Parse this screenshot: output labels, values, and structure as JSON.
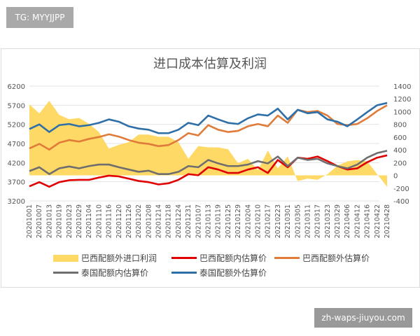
{
  "watermark_top": "TG: MYYJJPP",
  "watermark_bottom": "zh-waps-jiuyou.com",
  "chart_data": {
    "type": "line",
    "title": "进口成本估算及利润",
    "categories": [
      "20201001",
      "20201007",
      "20201013",
      "20201019",
      "20201023",
      "20201029",
      "20201104",
      "20201110",
      "20201116",
      "20201120",
      "20201126",
      "20201202",
      "20201208",
      "20201214",
      "20201218",
      "20201224",
      "20201231",
      "20210107",
      "20210113",
      "20210119",
      "20210125",
      "20210129",
      "20210204",
      "20210210",
      "20210217",
      "20210223",
      "20210301",
      "20210305",
      "20210311",
      "20210317",
      "20210323",
      "20210329",
      "20210406",
      "20210412",
      "20210416",
      "20210422",
      "20210428"
    ],
    "ylim": [
      3200,
      6200
    ],
    "yticks": [
      3200,
      3700,
      4200,
      4700,
      5200,
      5700,
      6200
    ],
    "y2lim": [
      -400,
      1400
    ],
    "y2ticks": [
      -400,
      -200,
      0,
      200,
      400,
      600,
      800,
      1000,
      1200,
      1400
    ],
    "grid": true,
    "legend": "bottom",
    "series": [
      {
        "name": "巴西配额外进口利润",
        "type": "area",
        "axis": "right",
        "color": "#ffd966",
        "values": [
          1115,
          970,
          1170,
          950,
          880,
          900,
          810,
          680,
          420,
          480,
          520,
          640,
          640,
          605,
          605,
          520,
          260,
          460,
          440,
          440,
          410,
          190,
          260,
          80,
          390,
          110,
          300,
          -90,
          -50,
          -70,
          20,
          150,
          220,
          240,
          220,
          20,
          -180
        ]
      },
      {
        "name": "巴西配额内估算价",
        "type": "line",
        "axis": "left",
        "color": "#e00000",
        "values": [
          3580,
          3690,
          3570,
          3690,
          3740,
          3750,
          3750,
          3810,
          3860,
          3840,
          3780,
          3720,
          3690,
          3630,
          3660,
          3750,
          3900,
          3870,
          4080,
          4020,
          3930,
          3930,
          4020,
          4080,
          3930,
          4270,
          4080,
          4330,
          4300,
          4360,
          4240,
          4110,
          4020,
          4050,
          4210,
          4330,
          4390
        ]
      },
      {
        "name": "巴西配额外估算价",
        "type": "line",
        "axis": "left",
        "color": "#e07b39",
        "values": [
          4570,
          4690,
          4540,
          4720,
          4790,
          4750,
          4820,
          4870,
          4940,
          4880,
          4790,
          4720,
          4690,
          4630,
          4660,
          4790,
          4970,
          4910,
          5180,
          5060,
          5000,
          5030,
          5150,
          5210,
          5150,
          5430,
          5240,
          5580,
          5520,
          5550,
          5430,
          5210,
          5180,
          5210,
          5360,
          5550,
          5700
        ]
      },
      {
        "name": "泰国配额内估算价",
        "type": "line",
        "axis": "left",
        "color": "#6e6e6e",
        "values": [
          3980,
          4080,
          3900,
          4050,
          4100,
          4050,
          4110,
          4150,
          4150,
          4080,
          4020,
          3960,
          3990,
          3900,
          3900,
          3960,
          4110,
          4080,
          4270,
          4180,
          4110,
          4110,
          4150,
          4240,
          4180,
          4360,
          4110,
          4330,
          4270,
          4300,
          4180,
          4110,
          4050,
          4150,
          4330,
          4450,
          4510
        ]
      },
      {
        "name": "泰国配额外估算价",
        "type": "line",
        "axis": "left",
        "color": "#2e6fa8",
        "values": [
          5078,
          5200,
          5000,
          5180,
          5210,
          5150,
          5180,
          5240,
          5330,
          5270,
          5150,
          5090,
          5060,
          4970,
          4970,
          5060,
          5240,
          5180,
          5430,
          5330,
          5240,
          5210,
          5360,
          5460,
          5430,
          5610,
          5330,
          5580,
          5490,
          5520,
          5330,
          5270,
          5150,
          5330,
          5520,
          5700,
          5760
        ]
      }
    ]
  }
}
